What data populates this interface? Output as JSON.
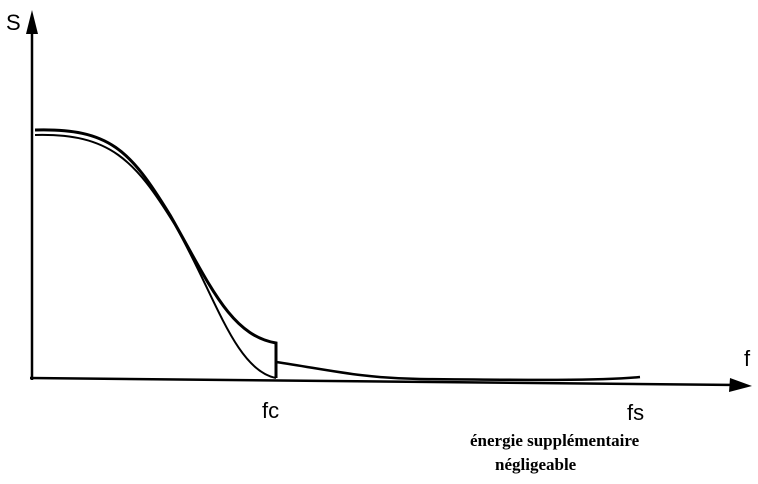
{
  "axis_labels": {
    "y": "S",
    "x": "f"
  },
  "markers": {
    "fc": "fc",
    "fs": "fs"
  },
  "annotation": {
    "line1": "énergie supplémentaire",
    "line2": "négligeable"
  }
}
